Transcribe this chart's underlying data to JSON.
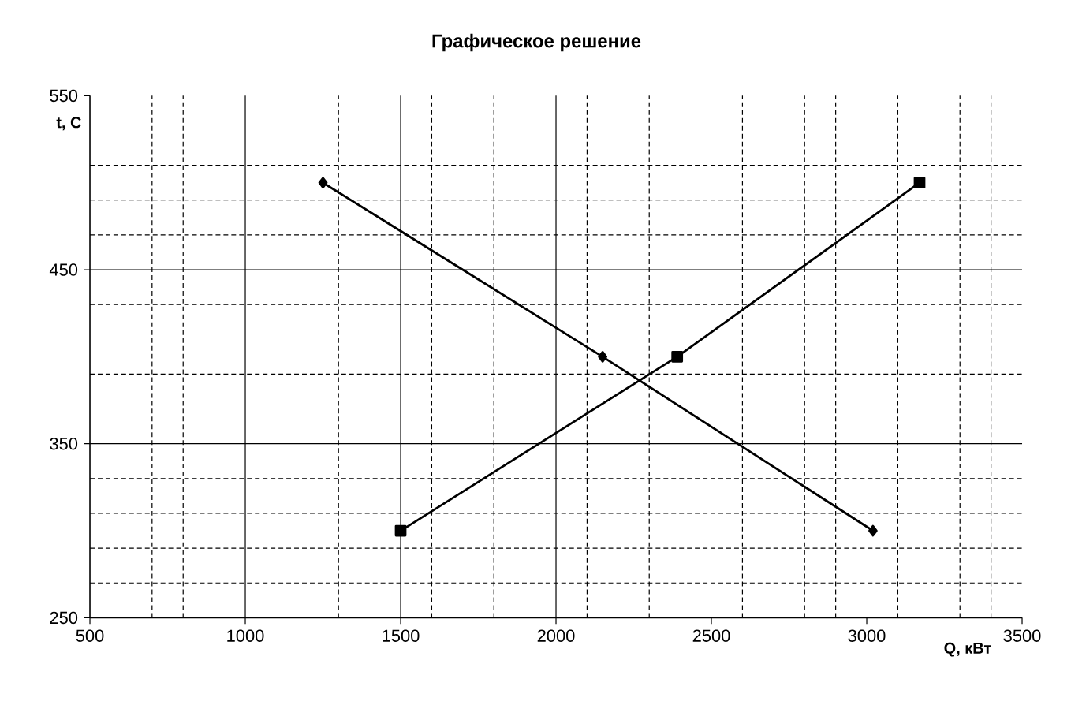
{
  "chart_data": {
    "type": "line",
    "title": "Графическое решение",
    "xlabel": "Q, кВт",
    "ylabel": "t, C",
    "xlim": [
      500,
      3500
    ],
    "ylim": [
      250,
      550
    ],
    "xticks": [
      500,
      1000,
      1500,
      2000,
      2500,
      3000,
      3500
    ],
    "yticks": [
      250,
      350,
      450,
      550
    ],
    "grid": false,
    "line_style": "solid",
    "series": [
      {
        "color": "#000000",
        "marker": "diamond",
        "x": [
          1250,
          2150,
          3020
        ],
        "values": [
          500,
          400,
          300
        ]
      },
      {
        "color": "#000000",
        "marker": "square",
        "x": [
          1500,
          2390,
          3170
        ],
        "values": [
          300,
          400,
          500
        ]
      }
    ],
    "ref_lines": [
      {
        "axis": "y",
        "value": 350,
        "line_style": "solid"
      },
      {
        "axis": "y",
        "value": 450,
        "line_style": "solid"
      },
      {
        "axis": "y",
        "value": 270,
        "line_style": "dashed"
      },
      {
        "axis": "y",
        "value": 290,
        "line_style": "dashed"
      },
      {
        "axis": "y",
        "value": 310,
        "line_style": "dashed"
      },
      {
        "axis": "y",
        "value": 330,
        "line_style": "dashed"
      },
      {
        "axis": "y",
        "value": 390,
        "line_style": "dashed"
      },
      {
        "axis": "y",
        "value": 430,
        "line_style": "dashed"
      },
      {
        "axis": "y",
        "value": 470,
        "line_style": "dashed"
      },
      {
        "axis": "y",
        "value": 490,
        "line_style": "dashed"
      },
      {
        "axis": "y",
        "value": 510,
        "line_style": "dashed"
      },
      {
        "axis": "x",
        "value": 1000,
        "line_style": "solid"
      },
      {
        "axis": "x",
        "value": 1500,
        "line_style": "solid"
      },
      {
        "axis": "x",
        "value": 2000,
        "line_style": "solid"
      },
      {
        "axis": "x",
        "value": 700,
        "line_style": "dashed"
      },
      {
        "axis": "x",
        "value": 800,
        "line_style": "dashed"
      },
      {
        "axis": "x",
        "value": 1300,
        "line_style": "dashed"
      },
      {
        "axis": "x",
        "value": 1600,
        "line_style": "dashed"
      },
      {
        "axis": "x",
        "value": 1800,
        "line_style": "dashed"
      },
      {
        "axis": "x",
        "value": 2100,
        "line_style": "dashed"
      },
      {
        "axis": "x",
        "value": 2300,
        "line_style": "dashed"
      },
      {
        "axis": "x",
        "value": 2600,
        "line_style": "dashed"
      },
      {
        "axis": "x",
        "value": 2800,
        "line_style": "dashed"
      },
      {
        "axis": "x",
        "value": 2900,
        "line_style": "dashed"
      },
      {
        "axis": "x",
        "value": 3100,
        "line_style": "dashed"
      },
      {
        "axis": "x",
        "value": 3300,
        "line_style": "dashed"
      },
      {
        "axis": "x",
        "value": 3400,
        "line_style": "dashed"
      }
    ]
  }
}
